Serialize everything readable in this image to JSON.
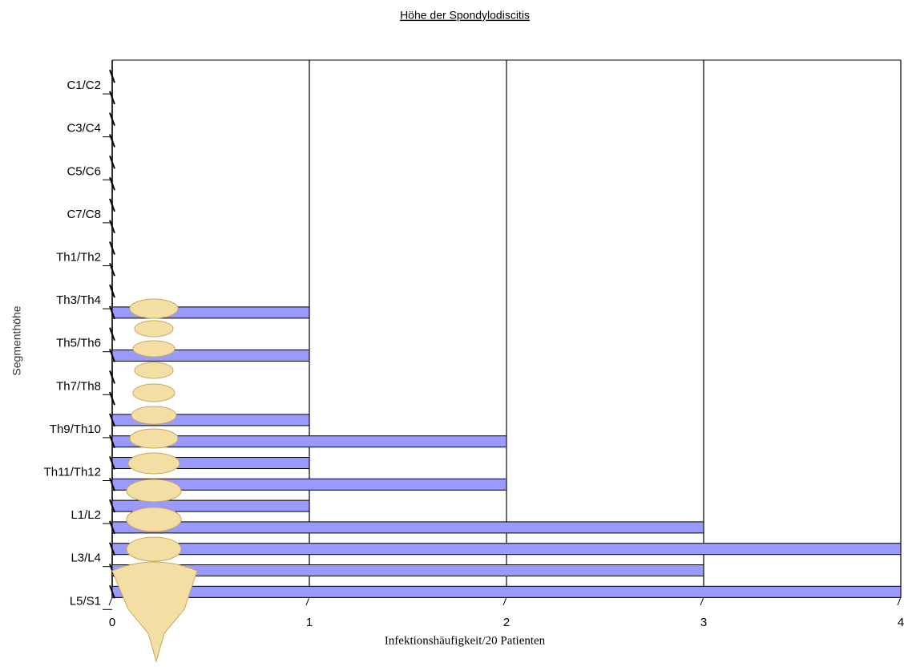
{
  "chart_data": {
    "type": "bar",
    "orientation": "horizontal",
    "title": "Höhe der Spondylodiscitis",
    "x_label": "Infektionshäufigkeit/20 Patienten",
    "y_label": "Segmenthöhe",
    "categories": [
      "C1/C2",
      null,
      "C3/C4",
      null,
      "C5/C6",
      null,
      "C7/C8",
      null,
      "Th1/Th2",
      null,
      "Th3/Th4",
      null,
      "Th5/Th6",
      null,
      "Th7/Th8",
      null,
      "Th9/Th10",
      null,
      "Th11/Th12",
      null,
      "L1/L2",
      null,
      "L3/L4",
      null,
      "L5/S1"
    ],
    "values": [
      0,
      0,
      0,
      0,
      0,
      0,
      0,
      0,
      0,
      0,
      0,
      1,
      0,
      1,
      0,
      0,
      1,
      2,
      1,
      2,
      1,
      3,
      4,
      3,
      4
    ],
    "color": "#9999ff",
    "xlim": [
      0,
      4
    ],
    "xticks": [
      0,
      1,
      2,
      3,
      4
    ],
    "grid": true
  }
}
